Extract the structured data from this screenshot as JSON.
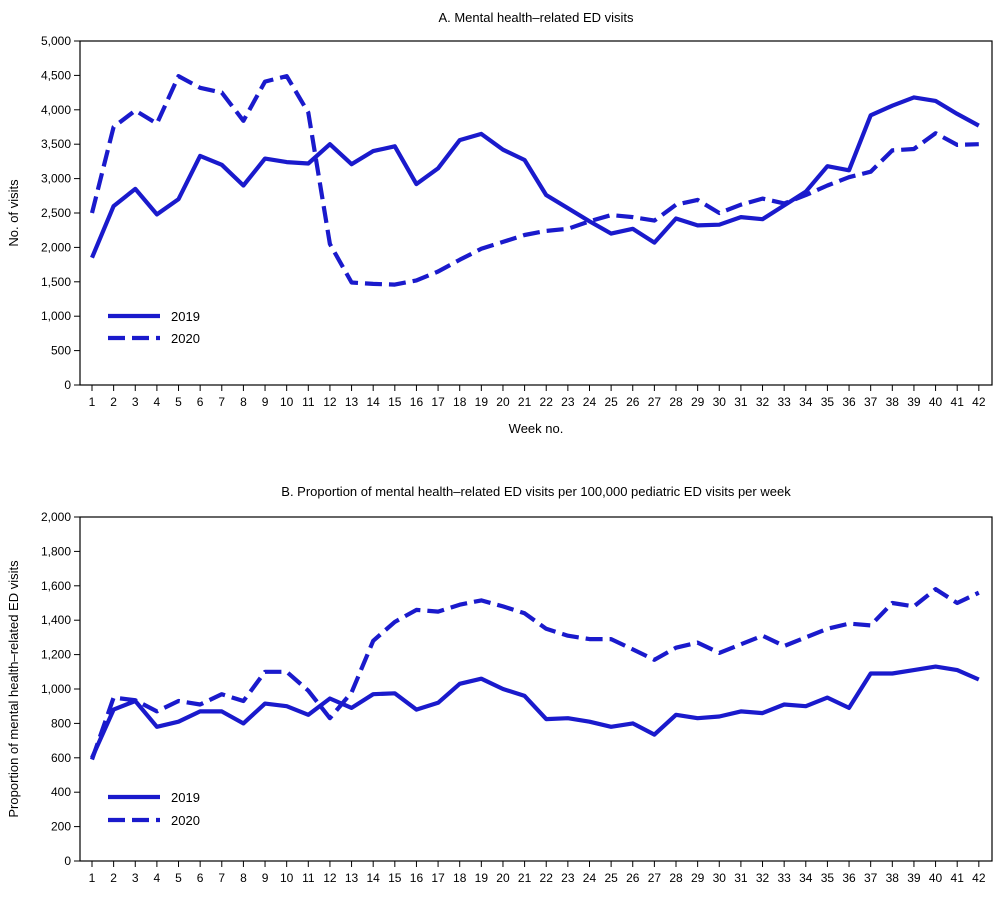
{
  "chart_data": [
    {
      "type": "line",
      "title": "A. Mental health–related ED visits",
      "xlabel": "Week no.",
      "ylabel": "No. of visits",
      "ylim": [
        0,
        5000
      ],
      "yticks": [
        0,
        500,
        1000,
        1500,
        2000,
        2500,
        3000,
        3500,
        4000,
        4500,
        5000
      ],
      "ytick_labels": [
        "0",
        "500",
        "1,000",
        "1,500",
        "2,000",
        "2,500",
        "3,000",
        "3,500",
        "4,000",
        "4,500",
        "5,000"
      ],
      "x": [
        1,
        2,
        3,
        4,
        5,
        6,
        7,
        8,
        9,
        10,
        11,
        12,
        13,
        14,
        15,
        16,
        17,
        18,
        19,
        20,
        21,
        22,
        23,
        24,
        25,
        26,
        27,
        28,
        29,
        30,
        31,
        32,
        33,
        34,
        35,
        36,
        37,
        38,
        39,
        40,
        41,
        42
      ],
      "legend_position": "bottom-left",
      "series": [
        {
          "name": "2019",
          "style": "solid",
          "color": "#1a1acc",
          "values": [
            1850,
            2600,
            2850,
            2480,
            2700,
            3330,
            3200,
            2900,
            3290,
            3240,
            3220,
            3500,
            3210,
            3400,
            3470,
            2920,
            3150,
            3560,
            3650,
            3420,
            3270,
            2760,
            2570,
            2380,
            2200,
            2270,
            2070,
            2420,
            2320,
            2330,
            2440,
            2410,
            2610,
            2810,
            3180,
            3120,
            3920,
            4060,
            4180,
            4130,
            3940,
            3770
          ]
        },
        {
          "name": "2020",
          "style": "dashed",
          "color": "#1a1acc",
          "values": [
            2500,
            3750,
            3990,
            3800,
            4490,
            4320,
            4250,
            3840,
            4410,
            4490,
            3960,
            2050,
            1490,
            1470,
            1460,
            1520,
            1650,
            1820,
            1980,
            2080,
            2180,
            2240,
            2270,
            2380,
            2470,
            2440,
            2390,
            2620,
            2690,
            2500,
            2620,
            2710,
            2640,
            2760,
            2900,
            3020,
            3100,
            3410,
            3430,
            3660,
            3490,
            3500
          ]
        }
      ]
    },
    {
      "type": "line",
      "title": "B. Proportion of mental health–related ED visits per 100,000 pediatric ED visits per week",
      "xlabel": "",
      "ylabel": "Proportion of mental health–related ED visits",
      "ylim": [
        0,
        2000
      ],
      "yticks": [
        0,
        200,
        400,
        600,
        800,
        1000,
        1200,
        1400,
        1600,
        1800,
        2000
      ],
      "ytick_labels": [
        "0",
        "200",
        "400",
        "600",
        "800",
        "1,000",
        "1,200",
        "1,400",
        "1,600",
        "1,800",
        "2,000"
      ],
      "x": [
        1,
        2,
        3,
        4,
        5,
        6,
        7,
        8,
        9,
        10,
        11,
        12,
        13,
        14,
        15,
        16,
        17,
        18,
        19,
        20,
        21,
        22,
        23,
        24,
        25,
        26,
        27,
        28,
        29,
        30,
        31,
        32,
        33,
        34,
        35,
        36,
        37,
        38,
        39,
        40,
        41,
        42
      ],
      "legend_position": "bottom-left",
      "series": [
        {
          "name": "2019",
          "style": "solid",
          "color": "#1a1acc",
          "values": [
            600,
            880,
            930,
            780,
            810,
            870,
            870,
            800,
            915,
            900,
            850,
            945,
            890,
            970,
            975,
            880,
            920,
            1030,
            1060,
            1000,
            960,
            825,
            830,
            810,
            780,
            800,
            735,
            850,
            830,
            840,
            870,
            860,
            910,
            900,
            950,
            890,
            1090,
            1090,
            1110,
            1130,
            1110,
            1055
          ]
        },
        {
          "name": "2020",
          "style": "dashed",
          "color": "#1a1acc",
          "values": [
            590,
            950,
            935,
            870,
            930,
            910,
            970,
            930,
            1100,
            1100,
            990,
            830,
            980,
            1280,
            1390,
            1460,
            1450,
            1490,
            1515,
            1480,
            1440,
            1350,
            1310,
            1290,
            1290,
            1230,
            1170,
            1240,
            1270,
            1210,
            1260,
            1310,
            1250,
            1300,
            1350,
            1380,
            1370,
            1500,
            1480,
            1580,
            1500,
            1560
          ]
        }
      ]
    }
  ]
}
